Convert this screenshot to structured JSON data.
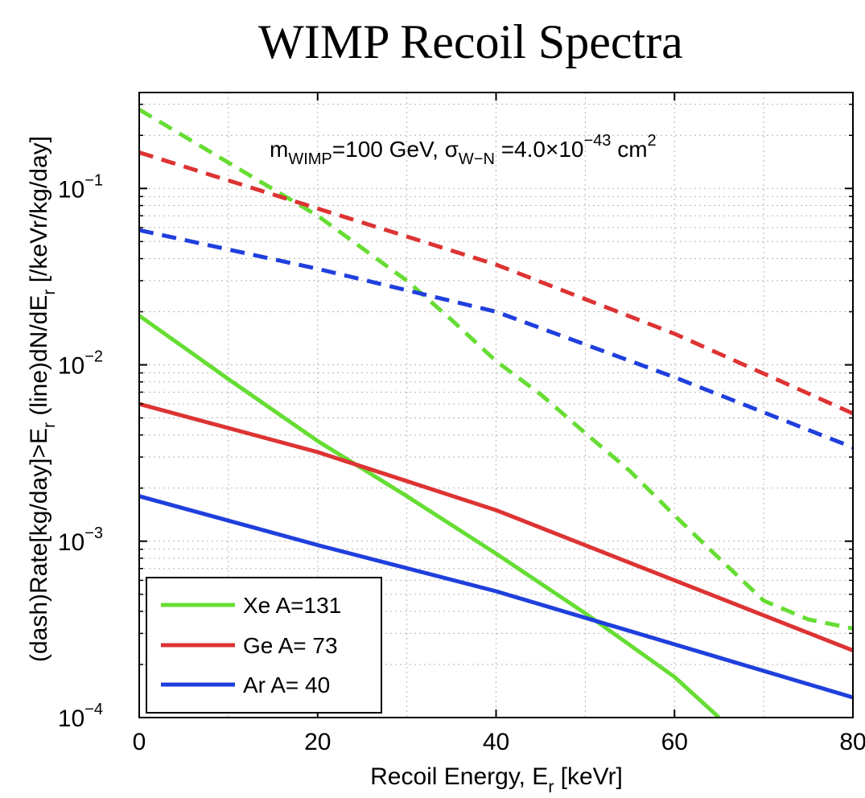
{
  "chart_data": {
    "type": "line",
    "title": "WIMP Recoil Spectra",
    "xlabel": {
      "main": "Recoil Energy, E",
      "sub": "r",
      "tail": " [keVr]"
    },
    "ylabel": {
      "p1": "(dash)Rate[kg/day]>E",
      "p1sub": "r",
      "p2": "   (line)dN/dE",
      "p2sub": "r",
      "p3": " [/keVr/kg/day]"
    },
    "annotation": {
      "m": "m",
      "m_sub": "WIMP",
      "mid": "=100 GeV, ",
      "sigma": "σ",
      "sigma_sub": "W−N",
      "val": " =4.0×10",
      "exp": "−43",
      "unit": " cm",
      "unit_exp": "2"
    },
    "xlim": [
      0,
      80
    ],
    "ylim": [
      0.0001,
      0.35
    ],
    "yscale": "log",
    "grid": true,
    "xticks": [
      "0",
      "20",
      "40",
      "60",
      "80"
    ],
    "yticks": [
      {
        "value": 0.1,
        "base": "10",
        "exp": "−1"
      },
      {
        "value": 0.01,
        "base": "10",
        "exp": "−2"
      },
      {
        "value": 0.001,
        "base": "10",
        "exp": "−3"
      },
      {
        "value": 0.0001,
        "base": "10",
        "exp": "−4"
      }
    ],
    "legend_position": "lower-left",
    "legend": [
      {
        "label": "Xe A=131",
        "color": "#66dd33"
      },
      {
        "label": "Ge A= 73",
        "color": "#dd3333"
      },
      {
        "label": "Ar A= 40",
        "color": "#1f3fdd"
      }
    ],
    "series": [
      {
        "color": "#66dd33",
        "style": "solid",
        "x": [
          0,
          10,
          20,
          30,
          40,
          50,
          60,
          65
        ],
        "y": [
          0.019,
          0.0083,
          0.0037,
          0.0018,
          0.00085,
          0.00039,
          0.00017,
          0.0001
        ]
      },
      {
        "color": "#dd3333",
        "style": "solid",
        "x": [
          0,
          20,
          40,
          60,
          80
        ],
        "y": [
          0.006,
          0.0032,
          0.0015,
          0.0006,
          0.00024
        ]
      },
      {
        "color": "#1f3fdd",
        "style": "solid",
        "x": [
          0,
          20,
          40,
          60,
          80
        ],
        "y": [
          0.0018,
          0.00095,
          0.00052,
          0.00026,
          0.00013
        ]
      },
      {
        "color": "#66dd33",
        "style": "dashed",
        "x": [
          0,
          10,
          20,
          30,
          35,
          40,
          45,
          50,
          55,
          60,
          65,
          70,
          75,
          80
        ],
        "y": [
          0.28,
          0.14,
          0.07,
          0.03,
          0.018,
          0.0105,
          0.0068,
          0.0041,
          0.0025,
          0.0014,
          0.0008,
          0.00046,
          0.00036,
          0.00032
        ]
      },
      {
        "color": "#dd3333",
        "style": "dashed",
        "x": [
          0,
          20,
          40,
          60,
          80
        ],
        "y": [
          0.16,
          0.077,
          0.037,
          0.015,
          0.0053
        ]
      },
      {
        "color": "#1f3fdd",
        "style": "dashed",
        "x": [
          0,
          20,
          40,
          60,
          80
        ],
        "y": [
          0.058,
          0.035,
          0.02,
          0.0085,
          0.0034
        ]
      }
    ]
  }
}
